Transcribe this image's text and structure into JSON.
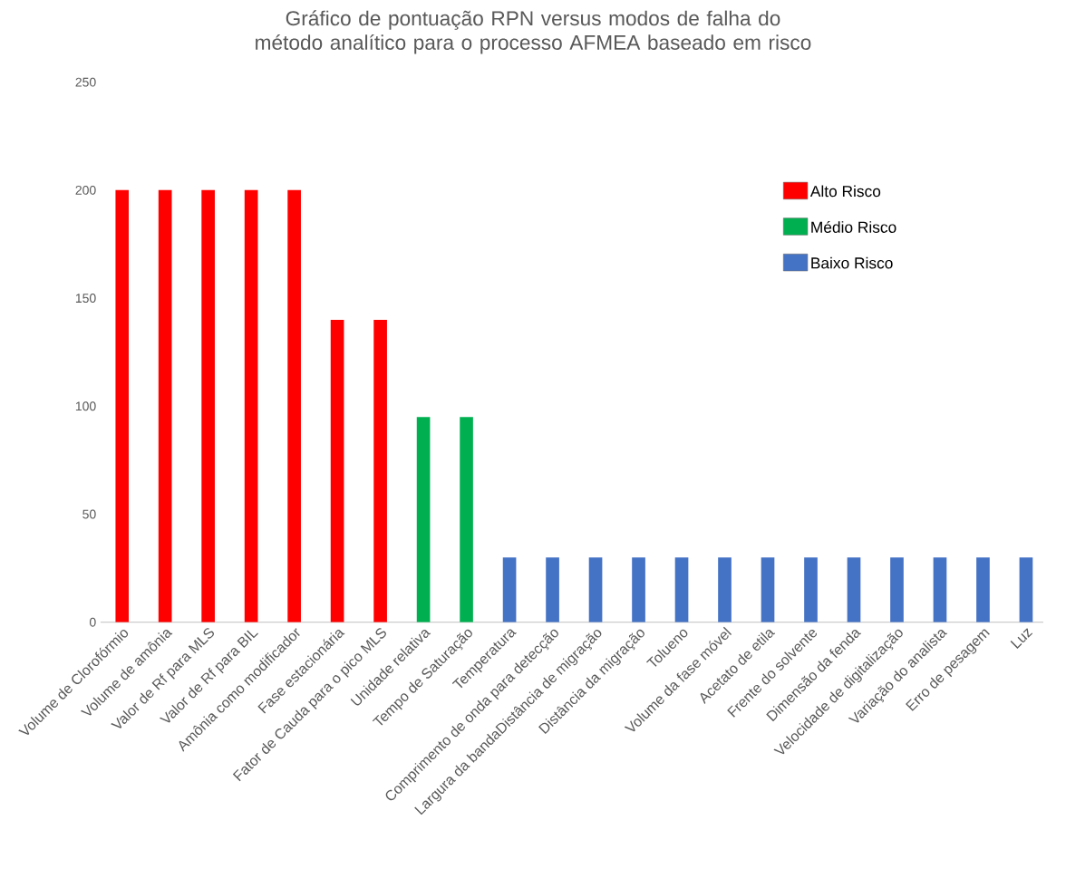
{
  "chart_data": {
    "type": "bar",
    "title": "Gráfico de pontuação RPN versus modos de falha do método analítico para o processo AFMEA baseado em risco",
    "categories": [
      "Volume de Clorofórmio",
      "Volume de amônia",
      "Valor de Rf para MLS",
      "Valor de Rf para BIL",
      "Amônia como modificador",
      "Fase estacionária",
      "Fator de Cauda para o pico MLS",
      "Unidade relativa",
      "Tempo de Saturação",
      "Temperatura",
      "Comprimento de onda para detecção",
      "Largura da bandaDistância de migração",
      "Distância da migração",
      "Tolueno",
      "Volume da fase móvel",
      "Acetato de etila",
      "Frente do solvente",
      "Dimensão da fenda",
      "Velocidade de digitalização",
      "Variação do analista",
      "Erro de pesagem",
      "Luz"
    ],
    "series": [
      {
        "name": "Alto Risco",
        "color": "#ff0000",
        "values": [
          200,
          200,
          200,
          200,
          200,
          140,
          140,
          null,
          null,
          null,
          null,
          null,
          null,
          null,
          null,
          null,
          null,
          null,
          null,
          null,
          null,
          null
        ]
      },
      {
        "name": "Médio Risco",
        "color": "#00b050",
        "values": [
          null,
          null,
          null,
          null,
          null,
          null,
          null,
          95,
          95,
          null,
          null,
          null,
          null,
          null,
          null,
          null,
          null,
          null,
          null,
          null,
          null,
          null
        ]
      },
      {
        "name": "Baixo Risco",
        "color": "#4472c4",
        "values": [
          null,
          null,
          null,
          null,
          null,
          null,
          null,
          null,
          null,
          30,
          30,
          30,
          30,
          30,
          30,
          30,
          30,
          30,
          30,
          30,
          30,
          30
        ]
      }
    ],
    "ylim": [
      0,
      250
    ],
    "yticks": [
      0,
      50,
      100,
      150,
      200,
      250
    ],
    "legend": "right"
  }
}
